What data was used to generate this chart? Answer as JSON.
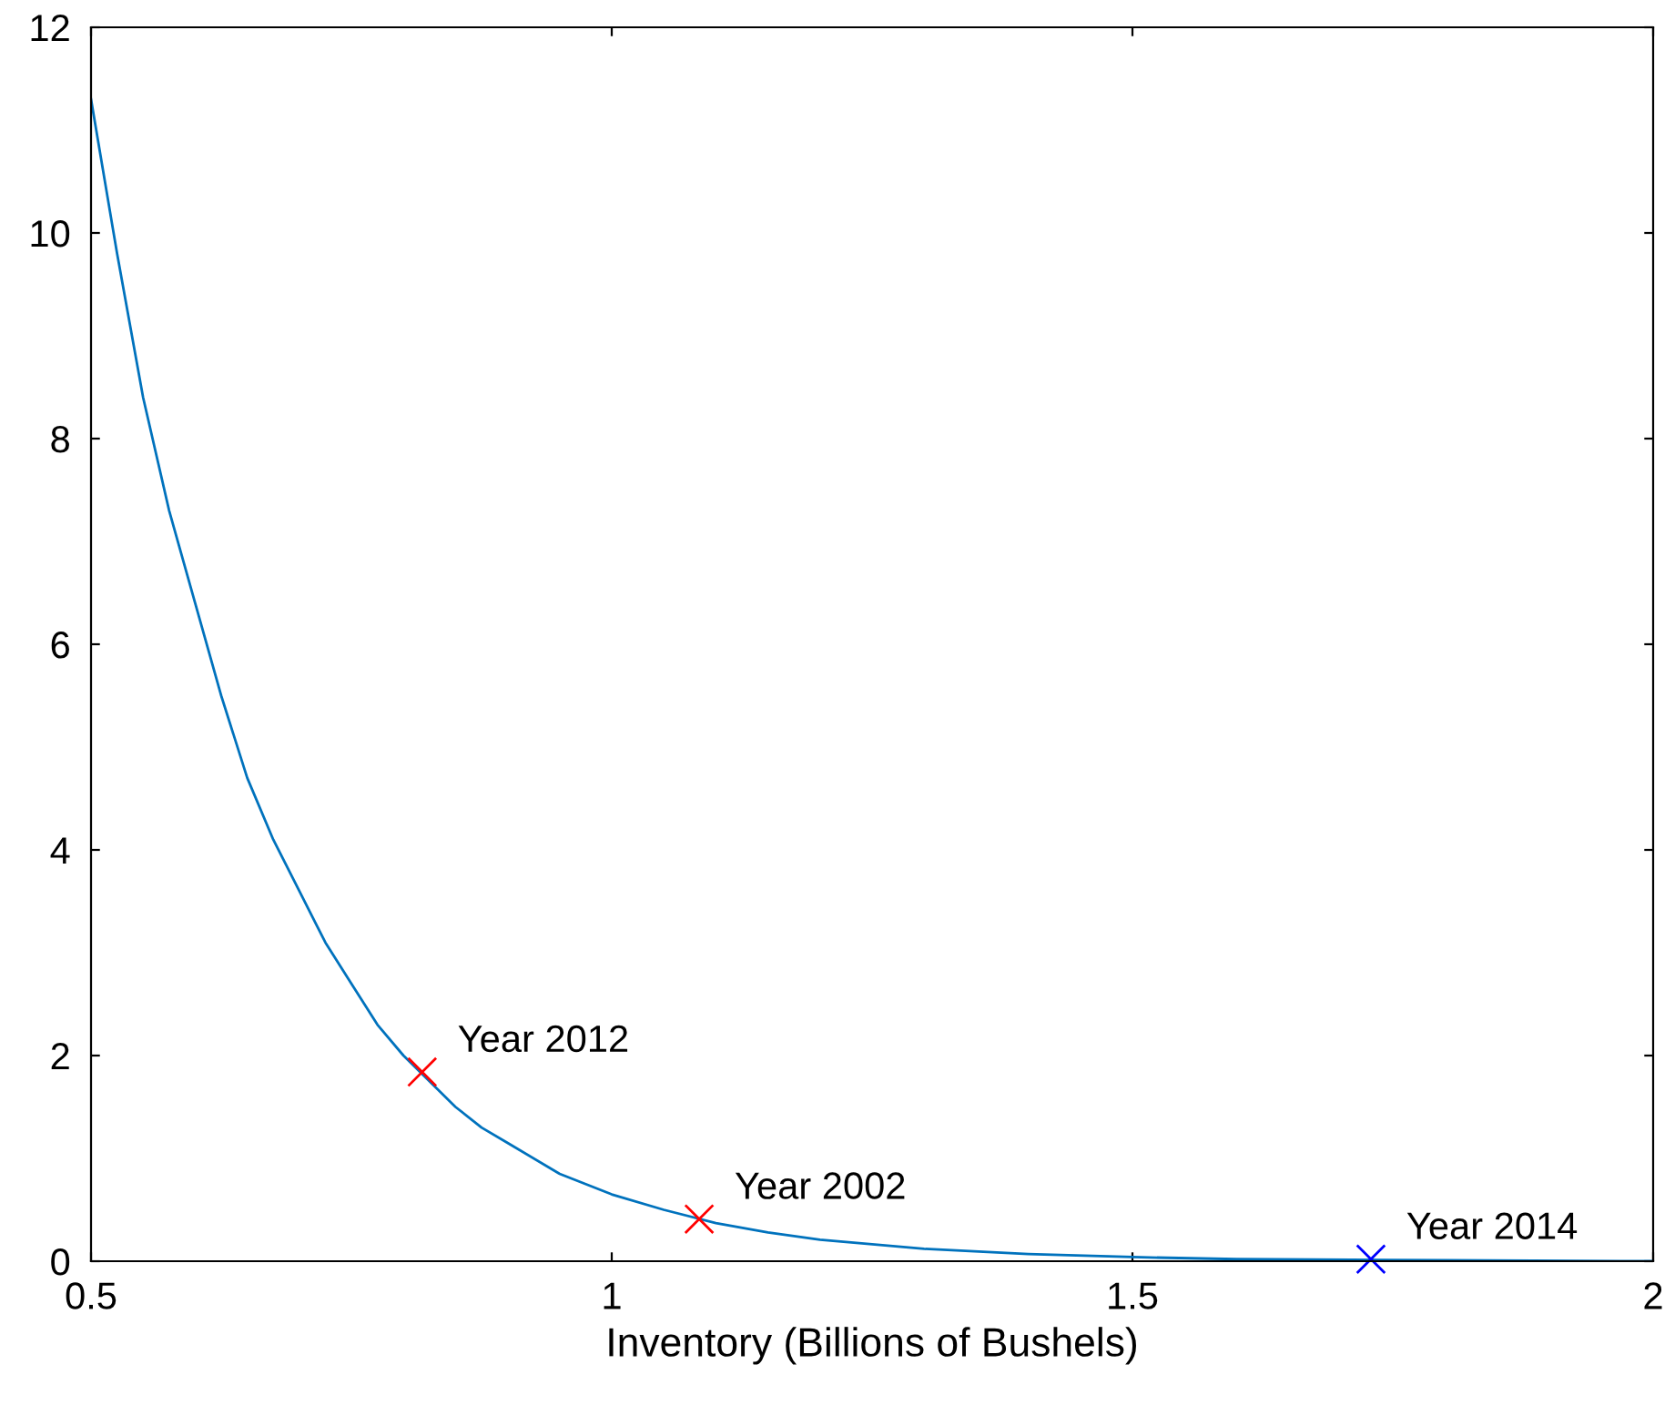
{
  "chart_data": {
    "type": "line",
    "xlabel": "Inventory (Billions of Bushels)",
    "xlim": [
      0.5,
      2
    ],
    "xticks": [
      0.5,
      1,
      1.5,
      2
    ],
    "ylim": [
      0,
      12
    ],
    "yticks": [
      0,
      2,
      4,
      6,
      8,
      10,
      12
    ],
    "grid": false,
    "legend": false,
    "series": [
      {
        "color": "#0072bd",
        "marker": "none",
        "x": [
          0.5,
          0.525,
          0.55,
          0.575,
          0.6,
          0.625,
          0.65,
          0.675,
          0.7,
          0.725,
          0.75,
          0.775,
          0.8,
          0.825,
          0.85,
          0.875,
          0.9,
          0.95,
          1.0,
          1.05,
          1.1,
          1.15,
          1.2,
          1.3,
          1.4,
          1.5,
          1.6,
          1.8,
          2.0
        ],
        "values": [
          11.3,
          9.8,
          8.4,
          7.3,
          6.4,
          5.5,
          4.7,
          4.1,
          3.6,
          3.1,
          2.7,
          2.3,
          2.0,
          1.75,
          1.5,
          1.3,
          1.15,
          0.85,
          0.65,
          0.5,
          0.37,
          0.28,
          0.21,
          0.12,
          0.07,
          0.04,
          0.02,
          0.01,
          0.0
        ]
      },
      {
        "type": "scatter",
        "marker": "cross",
        "colors": [
          "#ff0000",
          "#ff0000",
          "#0000ff"
        ],
        "x": [
          0.818,
          1.084,
          1.729
        ],
        "values": [
          1.84,
          0.41,
          0.02
        ]
      }
    ],
    "annotations": [
      {
        "text": "Year 2012",
        "x": 0.818,
        "y": 1.84
      },
      {
        "text": "Year 2002",
        "x": 1.084,
        "y": 0.41
      },
      {
        "text": "Year 2014",
        "x": 1.729,
        "y": 0.02
      }
    ]
  }
}
